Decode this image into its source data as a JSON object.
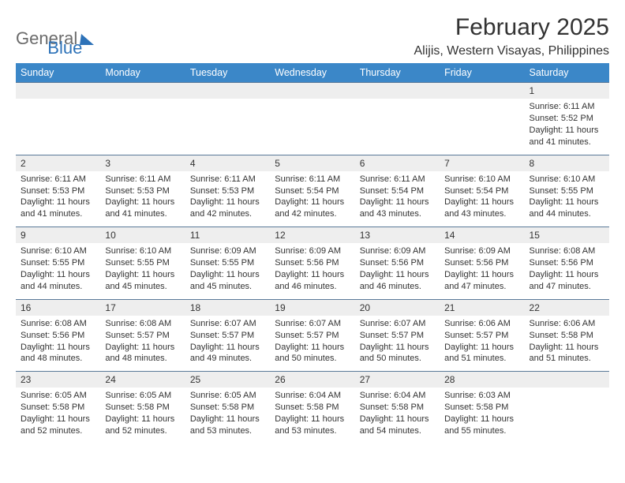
{
  "logo": {
    "part1": "General",
    "part2": "Blue"
  },
  "title": "February 2025",
  "location": "Alijis, Western Visayas, Philippines",
  "colors": {
    "header_bar": "#3b87c8",
    "header_text": "#ffffff",
    "daynum_bg": "#eeeeee",
    "row_border": "#5a7a99",
    "body_text": "#333333",
    "logo_gray": "#6b6b6b",
    "logo_blue": "#2d72b8",
    "page_bg": "#ffffff"
  },
  "typography": {
    "title_fontsize": 30,
    "location_fontsize": 16,
    "dow_fontsize": 12.5,
    "cell_fontsize": 11
  },
  "day_names": [
    "Sunday",
    "Monday",
    "Tuesday",
    "Wednesday",
    "Thursday",
    "Friday",
    "Saturday"
  ],
  "weeks": [
    [
      {
        "n": "",
        "sr": "",
        "ss": "",
        "dl": ""
      },
      {
        "n": "",
        "sr": "",
        "ss": "",
        "dl": ""
      },
      {
        "n": "",
        "sr": "",
        "ss": "",
        "dl": ""
      },
      {
        "n": "",
        "sr": "",
        "ss": "",
        "dl": ""
      },
      {
        "n": "",
        "sr": "",
        "ss": "",
        "dl": ""
      },
      {
        "n": "",
        "sr": "",
        "ss": "",
        "dl": ""
      },
      {
        "n": "1",
        "sr": "Sunrise: 6:11 AM",
        "ss": "Sunset: 5:52 PM",
        "dl": "Daylight: 11 hours and 41 minutes."
      }
    ],
    [
      {
        "n": "2",
        "sr": "Sunrise: 6:11 AM",
        "ss": "Sunset: 5:53 PM",
        "dl": "Daylight: 11 hours and 41 minutes."
      },
      {
        "n": "3",
        "sr": "Sunrise: 6:11 AM",
        "ss": "Sunset: 5:53 PM",
        "dl": "Daylight: 11 hours and 41 minutes."
      },
      {
        "n": "4",
        "sr": "Sunrise: 6:11 AM",
        "ss": "Sunset: 5:53 PM",
        "dl": "Daylight: 11 hours and 42 minutes."
      },
      {
        "n": "5",
        "sr": "Sunrise: 6:11 AM",
        "ss": "Sunset: 5:54 PM",
        "dl": "Daylight: 11 hours and 42 minutes."
      },
      {
        "n": "6",
        "sr": "Sunrise: 6:11 AM",
        "ss": "Sunset: 5:54 PM",
        "dl": "Daylight: 11 hours and 43 minutes."
      },
      {
        "n": "7",
        "sr": "Sunrise: 6:10 AM",
        "ss": "Sunset: 5:54 PM",
        "dl": "Daylight: 11 hours and 43 minutes."
      },
      {
        "n": "8",
        "sr": "Sunrise: 6:10 AM",
        "ss": "Sunset: 5:55 PM",
        "dl": "Daylight: 11 hours and 44 minutes."
      }
    ],
    [
      {
        "n": "9",
        "sr": "Sunrise: 6:10 AM",
        "ss": "Sunset: 5:55 PM",
        "dl": "Daylight: 11 hours and 44 minutes."
      },
      {
        "n": "10",
        "sr": "Sunrise: 6:10 AM",
        "ss": "Sunset: 5:55 PM",
        "dl": "Daylight: 11 hours and 45 minutes."
      },
      {
        "n": "11",
        "sr": "Sunrise: 6:09 AM",
        "ss": "Sunset: 5:55 PM",
        "dl": "Daylight: 11 hours and 45 minutes."
      },
      {
        "n": "12",
        "sr": "Sunrise: 6:09 AM",
        "ss": "Sunset: 5:56 PM",
        "dl": "Daylight: 11 hours and 46 minutes."
      },
      {
        "n": "13",
        "sr": "Sunrise: 6:09 AM",
        "ss": "Sunset: 5:56 PM",
        "dl": "Daylight: 11 hours and 46 minutes."
      },
      {
        "n": "14",
        "sr": "Sunrise: 6:09 AM",
        "ss": "Sunset: 5:56 PM",
        "dl": "Daylight: 11 hours and 47 minutes."
      },
      {
        "n": "15",
        "sr": "Sunrise: 6:08 AM",
        "ss": "Sunset: 5:56 PM",
        "dl": "Daylight: 11 hours and 47 minutes."
      }
    ],
    [
      {
        "n": "16",
        "sr": "Sunrise: 6:08 AM",
        "ss": "Sunset: 5:56 PM",
        "dl": "Daylight: 11 hours and 48 minutes."
      },
      {
        "n": "17",
        "sr": "Sunrise: 6:08 AM",
        "ss": "Sunset: 5:57 PM",
        "dl": "Daylight: 11 hours and 48 minutes."
      },
      {
        "n": "18",
        "sr": "Sunrise: 6:07 AM",
        "ss": "Sunset: 5:57 PM",
        "dl": "Daylight: 11 hours and 49 minutes."
      },
      {
        "n": "19",
        "sr": "Sunrise: 6:07 AM",
        "ss": "Sunset: 5:57 PM",
        "dl": "Daylight: 11 hours and 50 minutes."
      },
      {
        "n": "20",
        "sr": "Sunrise: 6:07 AM",
        "ss": "Sunset: 5:57 PM",
        "dl": "Daylight: 11 hours and 50 minutes."
      },
      {
        "n": "21",
        "sr": "Sunrise: 6:06 AM",
        "ss": "Sunset: 5:57 PM",
        "dl": "Daylight: 11 hours and 51 minutes."
      },
      {
        "n": "22",
        "sr": "Sunrise: 6:06 AM",
        "ss": "Sunset: 5:58 PM",
        "dl": "Daylight: 11 hours and 51 minutes."
      }
    ],
    [
      {
        "n": "23",
        "sr": "Sunrise: 6:05 AM",
        "ss": "Sunset: 5:58 PM",
        "dl": "Daylight: 11 hours and 52 minutes."
      },
      {
        "n": "24",
        "sr": "Sunrise: 6:05 AM",
        "ss": "Sunset: 5:58 PM",
        "dl": "Daylight: 11 hours and 52 minutes."
      },
      {
        "n": "25",
        "sr": "Sunrise: 6:05 AM",
        "ss": "Sunset: 5:58 PM",
        "dl": "Daylight: 11 hours and 53 minutes."
      },
      {
        "n": "26",
        "sr": "Sunrise: 6:04 AM",
        "ss": "Sunset: 5:58 PM",
        "dl": "Daylight: 11 hours and 53 minutes."
      },
      {
        "n": "27",
        "sr": "Sunrise: 6:04 AM",
        "ss": "Sunset: 5:58 PM",
        "dl": "Daylight: 11 hours and 54 minutes."
      },
      {
        "n": "28",
        "sr": "Sunrise: 6:03 AM",
        "ss": "Sunset: 5:58 PM",
        "dl": "Daylight: 11 hours and 55 minutes."
      },
      {
        "n": "",
        "sr": "",
        "ss": "",
        "dl": ""
      }
    ]
  ]
}
